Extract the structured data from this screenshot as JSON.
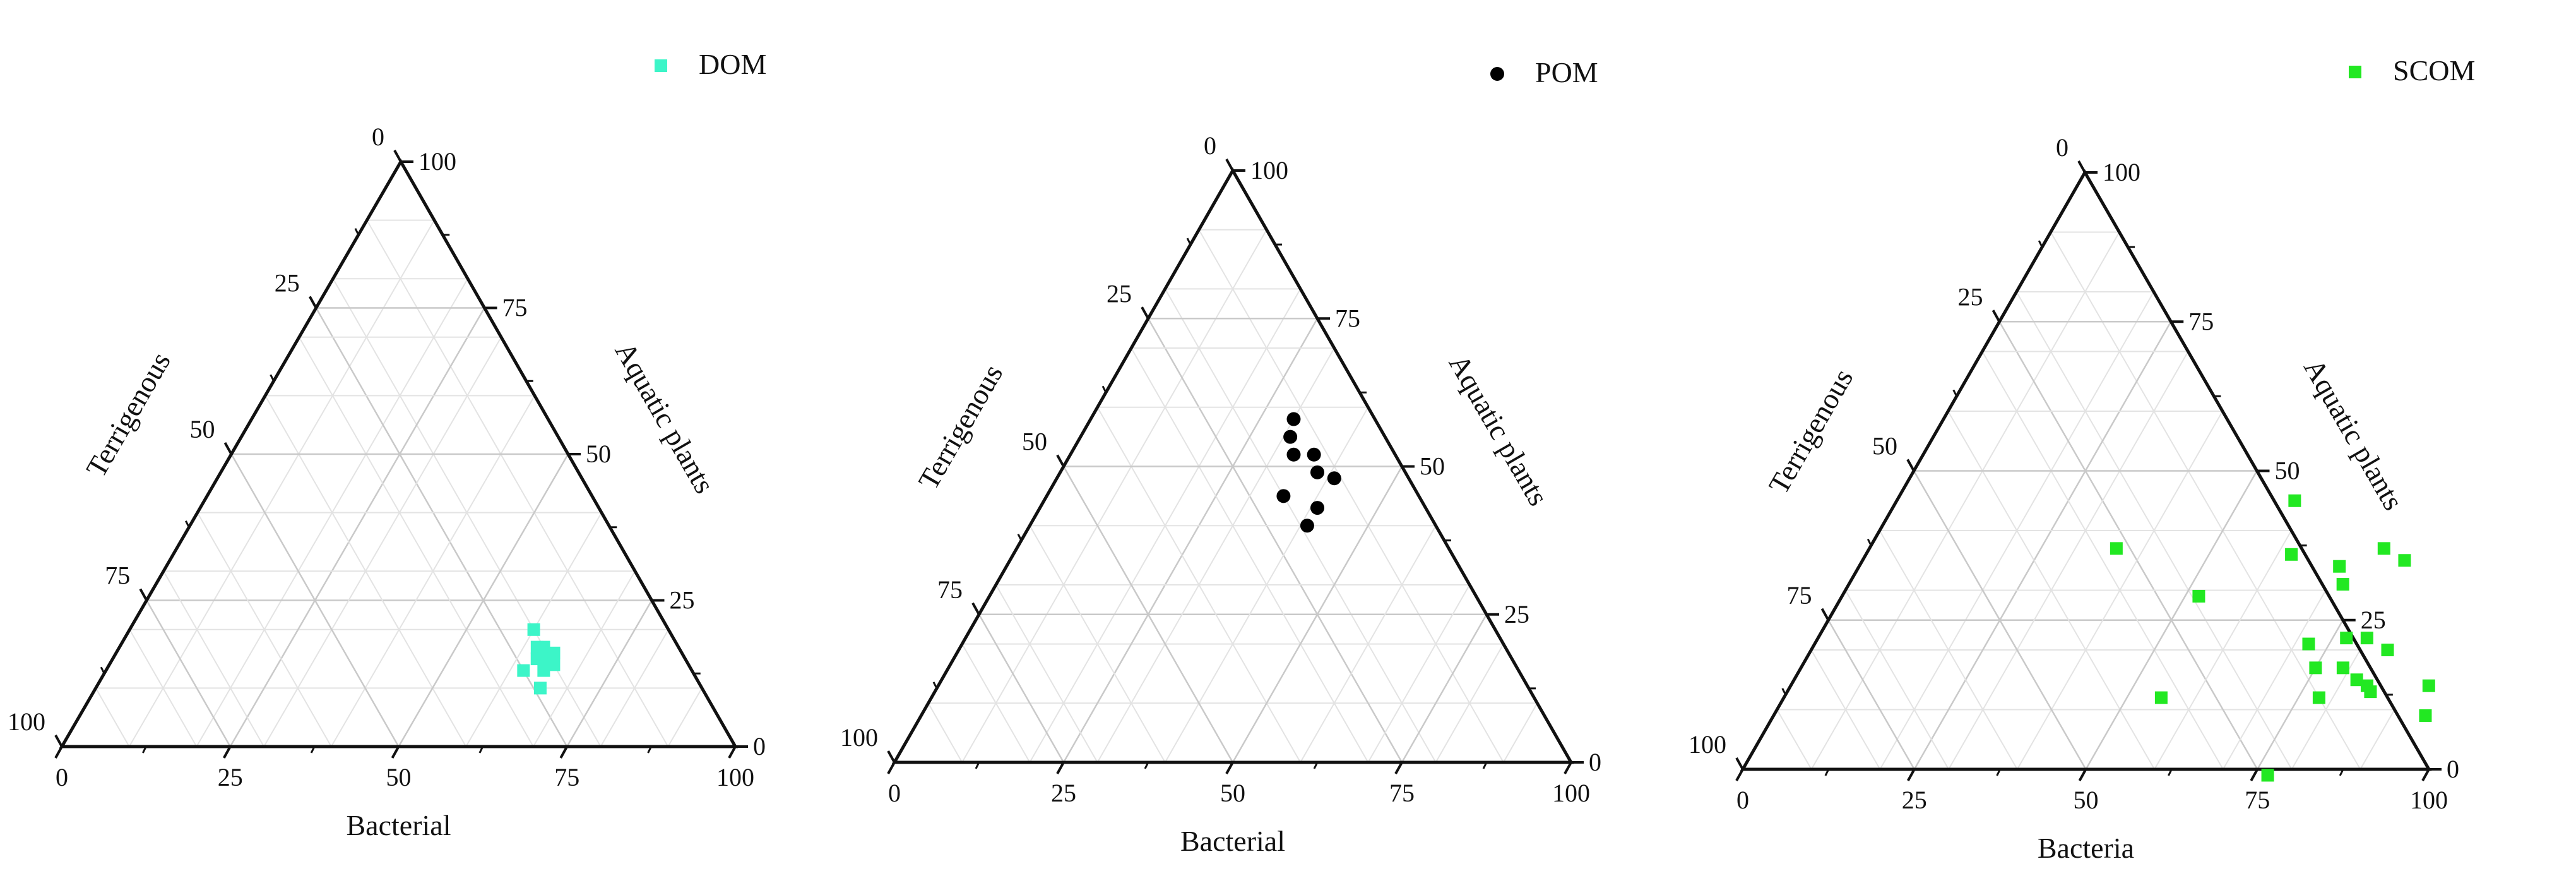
{
  "chart_data": [
    {
      "type": "ternary",
      "legend": {
        "label": "DOM",
        "marker": "square",
        "color": "#3cf5c8",
        "position": "top-right"
      },
      "axes": {
        "bottom": {
          "label": "Bacterial",
          "ticks": [
            "0",
            "25",
            "50",
            "75",
            "100"
          ]
        },
        "left": {
          "label": "Terrigenous",
          "ticks": [
            "0",
            "25",
            "50",
            "75",
            "100"
          ]
        },
        "right": {
          "label": "Aquatic plants",
          "ticks": [
            "0",
            "25",
            "50",
            "75",
            "100"
          ]
        }
      },
      "grid": true,
      "points": [
        {
          "bacterial": 60,
          "aquatic_plants": 20,
          "terrigenous": 20
        },
        {
          "bacterial": 62,
          "aquatic_plants": 17,
          "terrigenous": 21
        },
        {
          "bacterial": 63,
          "aquatic_plants": 15,
          "terrigenous": 22
        },
        {
          "bacterial": 63,
          "aquatic_plants": 17,
          "terrigenous": 20
        },
        {
          "bacterial": 64,
          "aquatic_plants": 15,
          "terrigenous": 21
        },
        {
          "bacterial": 65,
          "aquatic_plants": 16,
          "terrigenous": 19
        },
        {
          "bacterial": 62,
          "aquatic_plants": 13,
          "terrigenous": 25
        },
        {
          "bacterial": 66,
          "aquatic_plants": 14,
          "terrigenous": 20
        },
        {
          "bacterial": 65,
          "aquatic_plants": 13,
          "terrigenous": 22
        },
        {
          "bacterial": 66,
          "aquatic_plants": 10,
          "terrigenous": 24
        }
      ]
    },
    {
      "type": "ternary",
      "legend": {
        "label": "POM",
        "marker": "circle",
        "color": "#000000",
        "position": "top-right"
      },
      "axes": {
        "bottom": {
          "label": "Bacterial",
          "ticks": [
            "0",
            "25",
            "50",
            "75",
            "100"
          ]
        },
        "left": {
          "label": "Terrigenous",
          "ticks": [
            "0",
            "25",
            "50",
            "75",
            "100"
          ]
        },
        "right": {
          "label": "Aquatic plants",
          "ticks": [
            "0",
            "25",
            "50",
            "75",
            "100"
          ]
        }
      },
      "grid": true,
      "points": [
        {
          "bacterial": 30,
          "aquatic_plants": 58,
          "terrigenous": 12
        },
        {
          "bacterial": 31,
          "aquatic_plants": 55,
          "terrigenous": 14
        },
        {
          "bacterial": 33,
          "aquatic_plants": 52,
          "terrigenous": 15
        },
        {
          "bacterial": 36,
          "aquatic_plants": 52,
          "terrigenous": 12
        },
        {
          "bacterial": 38,
          "aquatic_plants": 49,
          "terrigenous": 13
        },
        {
          "bacterial": 41,
          "aquatic_plants": 48,
          "terrigenous": 11
        },
        {
          "bacterial": 35,
          "aquatic_plants": 45,
          "terrigenous": 20
        },
        {
          "bacterial": 41,
          "aquatic_plants": 43,
          "terrigenous": 16
        },
        {
          "bacterial": 41,
          "aquatic_plants": 40,
          "terrigenous": 19
        }
      ]
    },
    {
      "type": "ternary",
      "legend": {
        "label": "SCOM",
        "marker": "square",
        "color": "#22e822",
        "position": "top-right"
      },
      "axes": {
        "bottom": {
          "label": "Bacteria",
          "ticks": [
            "0",
            "25",
            "50",
            "75",
            "100"
          ]
        },
        "left": {
          "label": "Terrigenous",
          "ticks": [
            "0",
            "25",
            "50",
            "75",
            "100"
          ]
        },
        "right": {
          "label": "Aquatic plants",
          "ticks": [
            "0",
            "25",
            "50",
            "75",
            "100"
          ]
        }
      },
      "grid": true,
      "points": [
        {
          "bacterial": 36,
          "aquatic_plants": 37,
          "terrigenous": 27
        },
        {
          "bacterial": 58,
          "aquatic_plants": 45,
          "terrigenous": -3
        },
        {
          "bacterial": 62,
          "aquatic_plants": 36,
          "terrigenous": 2
        },
        {
          "bacterial": 52,
          "aquatic_plants": 29,
          "terrigenous": 19
        },
        {
          "bacterial": 70,
          "aquatic_plants": 34,
          "terrigenous": -4
        },
        {
          "bacterial": 72,
          "aquatic_plants": 31,
          "terrigenous": -3
        },
        {
          "bacterial": 75,
          "aquatic_plants": 37,
          "terrigenous": -12
        },
        {
          "bacterial": 79,
          "aquatic_plants": 35,
          "terrigenous": -14
        },
        {
          "bacterial": 72,
          "aquatic_plants": 21,
          "terrigenous": 7
        },
        {
          "bacterial": 77,
          "aquatic_plants": 22,
          "terrigenous": 1
        },
        {
          "bacterial": 80,
          "aquatic_plants": 22,
          "terrigenous": -2
        },
        {
          "bacterial": 84,
          "aquatic_plants": 20,
          "terrigenous": -4
        },
        {
          "bacterial": 75,
          "aquatic_plants": 17,
          "terrigenous": 8
        },
        {
          "bacterial": 79,
          "aquatic_plants": 17,
          "terrigenous": 4
        },
        {
          "bacterial": 82,
          "aquatic_plants": 15,
          "terrigenous": 3
        },
        {
          "bacterial": 84,
          "aquatic_plants": 14,
          "terrigenous": 2
        },
        {
          "bacterial": 85,
          "aquatic_plants": 13,
          "terrigenous": 2
        },
        {
          "bacterial": 78,
          "aquatic_plants": 12,
          "terrigenous": 10
        },
        {
          "bacterial": 55,
          "aquatic_plants": 12,
          "terrigenous": 33
        },
        {
          "bacterial": 93,
          "aquatic_plants": 14,
          "terrigenous": -7
        },
        {
          "bacterial": 95,
          "aquatic_plants": 9,
          "terrigenous": -4
        },
        {
          "bacterial": 77,
          "aquatic_plants": -1,
          "terrigenous": 24
        }
      ]
    }
  ]
}
